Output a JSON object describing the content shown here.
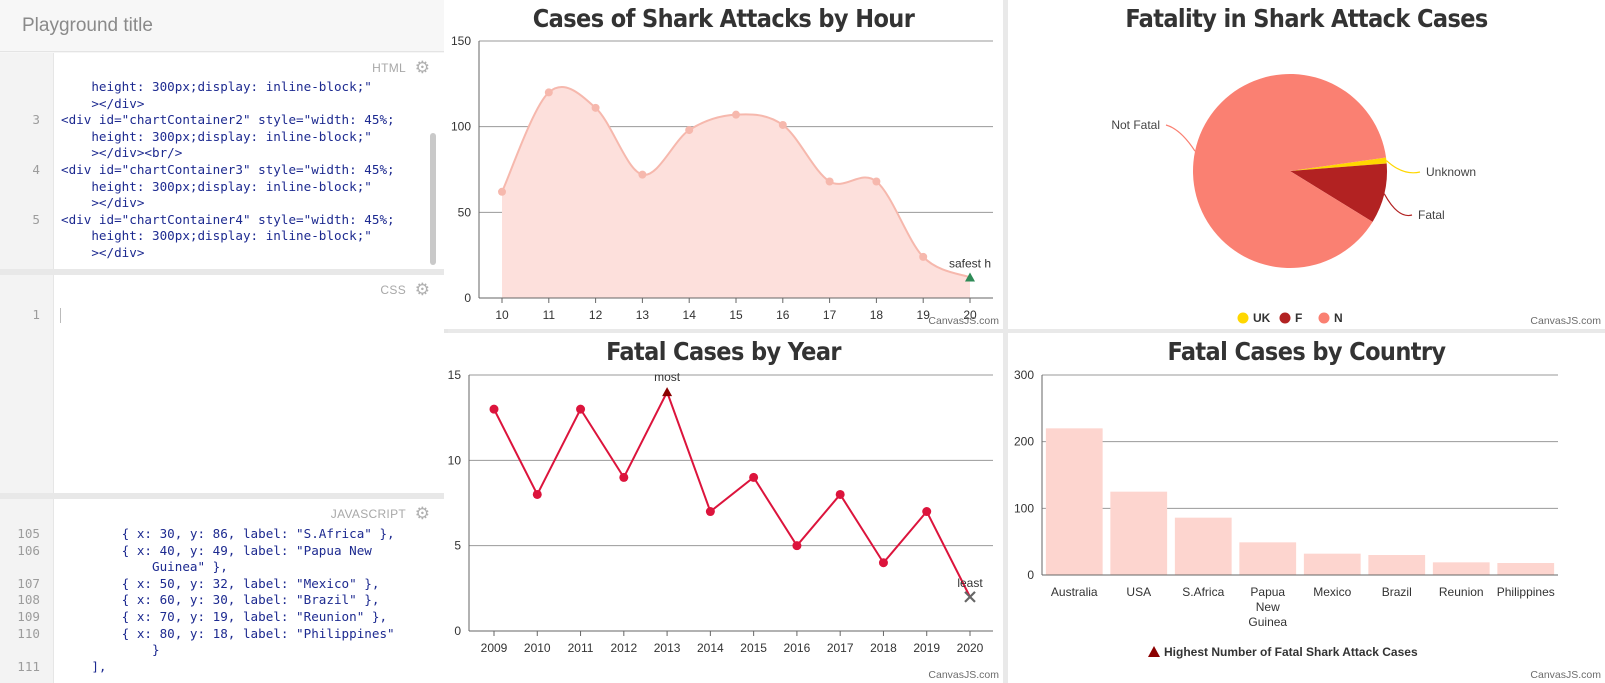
{
  "editor": {
    "title": "Playground title",
    "html_pane": {
      "label": "HTML",
      "lines": [
        {
          "n": "",
          "t": "    height: 300px;display: inline-block;\""
        },
        {
          "n": "",
          "t": "    ></div>"
        },
        {
          "n": "3",
          "t": "<div id=\"chartContainer2\" style=\"width: 45%;"
        },
        {
          "n": "",
          "t": "    height: 300px;display: inline-block;\""
        },
        {
          "n": "",
          "t": "    ></div><br/>"
        },
        {
          "n": "4",
          "t": "<div id=\"chartContainer3\" style=\"width: 45%;"
        },
        {
          "n": "",
          "t": "    height: 300px;display: inline-block;\""
        },
        {
          "n": "",
          "t": "    ></div>"
        },
        {
          "n": "5",
          "t": "<div id=\"chartContainer4\" style=\"width: 45%;"
        },
        {
          "n": "",
          "t": "    height: 300px;display: inline-block;\""
        },
        {
          "n": "",
          "t": "    ></div>"
        }
      ]
    },
    "css_pane": {
      "label": "CSS",
      "lines": [
        {
          "n": "1",
          "t": ""
        }
      ]
    },
    "js_pane": {
      "label": "JAVASCRIPT",
      "lines": [
        {
          "n": "105",
          "t": "        { x: 30, y: 86, label: \"S.Africa\" },"
        },
        {
          "n": "106",
          "t": "        { x: 40, y: 49, label: \"Papua New"
        },
        {
          "n": "",
          "t": "            Guinea\" },"
        },
        {
          "n": "107",
          "t": "        { x: 50, y: 32, label: \"Mexico\" },"
        },
        {
          "n": "108",
          "t": "        { x: 60, y: 30, label: \"Brazil\" },"
        },
        {
          "n": "109",
          "t": "        { x: 70, y: 19, label: \"Reunion\" },"
        },
        {
          "n": "110",
          "t": "        { x: 80, y: 18, label: \"Philippines\""
        },
        {
          "n": "",
          "t": "            }"
        },
        {
          "n": "111",
          "t": "    ],"
        }
      ]
    }
  },
  "charts": {
    "credit": "CanvasJS.com",
    "colors": {
      "area_fill": "#fde0dc",
      "area_line": "#f6b8ad",
      "line_red": "#dc143c",
      "bar_fill": "#fdd5cf",
      "pie_notfatal": "#fa8072",
      "pie_fatal": "#b22222",
      "pie_unknown": "#ffd700",
      "grid": "#9a9a9a",
      "marker_green": "#2e8b57",
      "marker_darkred": "#8b0000"
    }
  },
  "chart_data": [
    {
      "id": "hour",
      "type": "area",
      "title": "Cases of Shark Attacks by Hour",
      "x": [
        10,
        11,
        12,
        13,
        14,
        15,
        16,
        17,
        18,
        19,
        20
      ],
      "values": [
        62,
        120,
        111,
        72,
        98,
        107,
        101,
        68,
        68,
        24,
        12
      ],
      "xlim": [
        10,
        20
      ],
      "ylim": [
        0,
        150
      ],
      "yticks": [
        0,
        50,
        100,
        150
      ],
      "grid": true,
      "annotation": {
        "x": 20,
        "text": "safest h",
        "marker": "triangle"
      }
    },
    {
      "id": "fatality",
      "type": "pie",
      "title": "Fatality in Shark Attack Cases",
      "slices": [
        {
          "label": "Not Fatal",
          "legend": "N",
          "value": 89
        },
        {
          "label": "Unknown",
          "legend": "UK",
          "value": 1
        },
        {
          "label": "Fatal",
          "legend": "F",
          "value": 10
        }
      ],
      "legend_items": [
        "UK",
        "F",
        "N"
      ],
      "legend": "bottom"
    },
    {
      "id": "year",
      "type": "line",
      "title": "Fatal Cases by Year",
      "x": [
        2009,
        2010,
        2011,
        2012,
        2013,
        2014,
        2015,
        2016,
        2017,
        2018,
        2019,
        2020
      ],
      "values": [
        13,
        8,
        13,
        9,
        14,
        7,
        9,
        5,
        8,
        4,
        7,
        2
      ],
      "ylim": [
        0,
        15
      ],
      "yticks": [
        0,
        5,
        10,
        15
      ],
      "grid": true,
      "annotations": [
        {
          "x": 2013,
          "text": "most",
          "marker": "triangle"
        },
        {
          "x": 2020,
          "text": "least",
          "marker": "cross"
        }
      ]
    },
    {
      "id": "country",
      "type": "bar",
      "title": "Fatal Cases by Country",
      "categories": [
        "Australia",
        "USA",
        "S.Africa",
        "Papua New Guinea",
        "Mexico",
        "Brazil",
        "Reunion",
        "Philippines"
      ],
      "category_lines": [
        [
          "Australia"
        ],
        [
          "USA"
        ],
        [
          "S.Africa"
        ],
        [
          "Papua",
          "New",
          "Guinea"
        ],
        [
          "Mexico"
        ],
        [
          "Brazil"
        ],
        [
          "Reunion"
        ],
        [
          "Philippines"
        ]
      ],
      "values": [
        220,
        125,
        86,
        49,
        32,
        30,
        19,
        18
      ],
      "ylim": [
        0,
        300
      ],
      "yticks": [
        0,
        100,
        200,
        300
      ],
      "grid": true,
      "legend_text": "Highest Number of Fatal Shark Attack Cases",
      "legend": "bottom"
    }
  ]
}
